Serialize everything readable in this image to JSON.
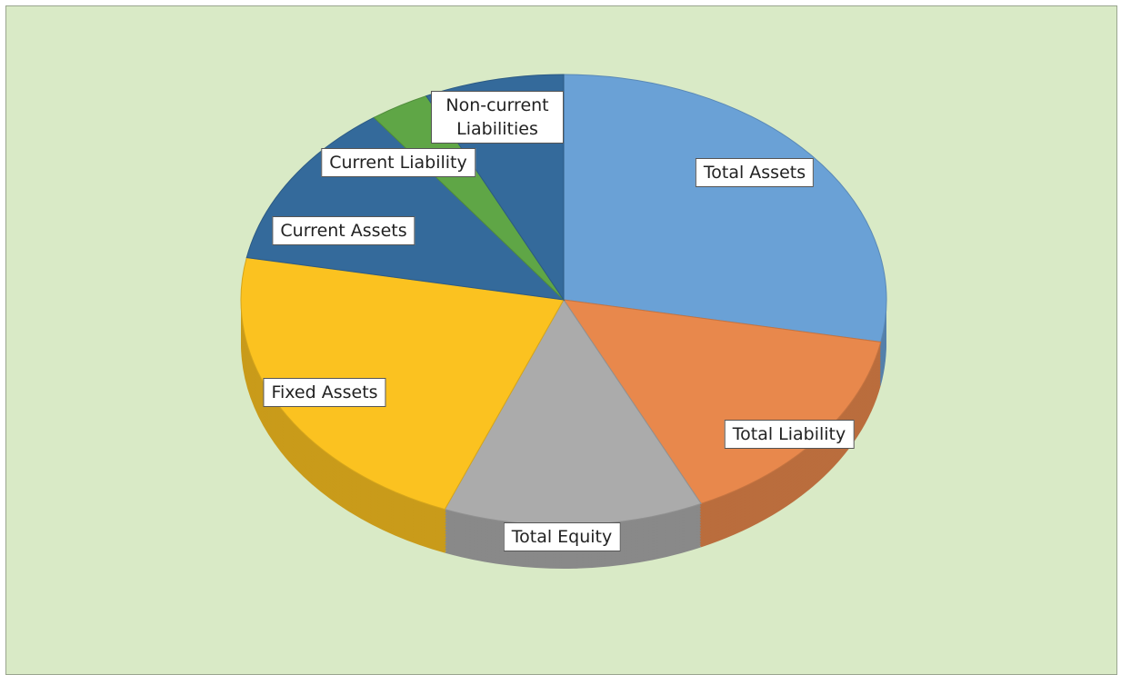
{
  "chart_data": {
    "type": "pie",
    "categories": [
      "Total Assets",
      "Total Liability",
      "Total Equity",
      "Fixed Assets",
      "Current Assets",
      "Current Liability",
      "Non-current Liabilities"
    ],
    "values": [
      28,
      15,
      13,
      22,
      12,
      3,
      7
    ],
    "colors": [
      "#6aa1d6",
      "#e8884c",
      "#ababab",
      "#fbc220",
      "#346a9b",
      "#5fa646",
      "#346a9b"
    ],
    "start_angle": 0,
    "direction": "clockwise"
  }
}
